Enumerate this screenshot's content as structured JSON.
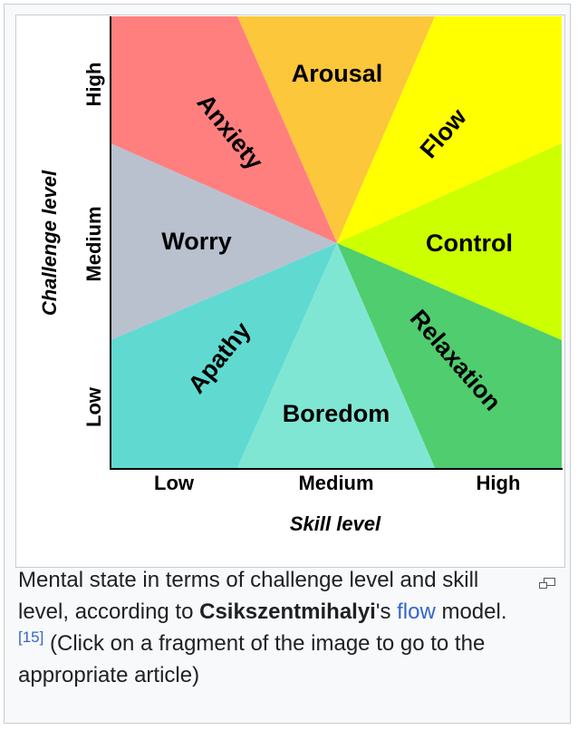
{
  "diagram": {
    "regions": [
      {
        "label": "Arousal",
        "color": "#fcc73b"
      },
      {
        "label": "Flow",
        "color": "#ffff00"
      },
      {
        "label": "Control",
        "color": "#ccff00"
      },
      {
        "label": "Relaxation",
        "color": "#50cd6e"
      },
      {
        "label": "Boredom",
        "color": "#80e6d4"
      },
      {
        "label": "Apathy",
        "color": "#60dad1"
      },
      {
        "label": "Worry",
        "color": "#b9c1cf"
      },
      {
        "label": "Anxiety",
        "color": "#ff7f7f"
      }
    ],
    "x_axis_label": "Skill level",
    "y_axis_label": "Challenge level",
    "x_ticks": [
      "Low",
      "Medium",
      "High"
    ],
    "y_ticks": [
      "Low",
      "Medium",
      "High"
    ]
  },
  "caption": {
    "text_before": "Mental state in terms of challenge level and skill level, according to ",
    "author": "Csikszentmihalyi",
    "text_possessive": "'s ",
    "link": "flow",
    "text_model": " model.",
    "reference": "[15]",
    "text_after": " (Click on a fragment of the image to go to the appropriate article)"
  },
  "icons": {
    "magnify": "magnify-clip-icon"
  }
}
